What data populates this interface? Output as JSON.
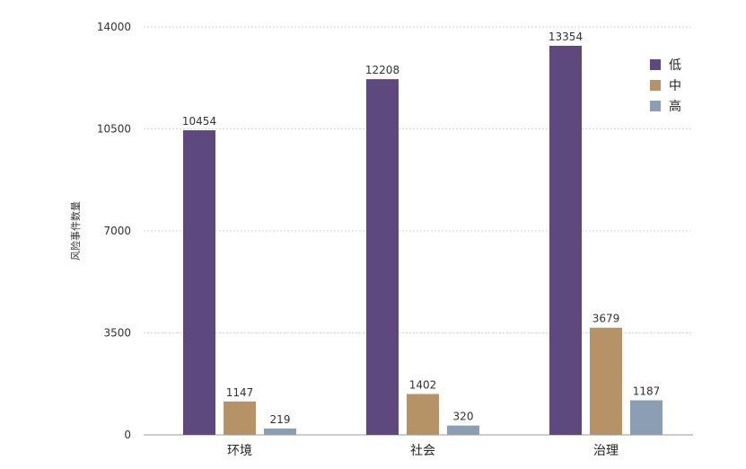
{
  "chart_data": {
    "type": "bar",
    "categories": [
      "环境",
      "社会",
      "治理"
    ],
    "series": [
      {
        "name": "低",
        "values": [
          10454,
          12208,
          13354
        ]
      },
      {
        "name": "中",
        "values": [
          1147,
          1402,
          3679
        ]
      },
      {
        "name": "高",
        "values": [
          219,
          320,
          1187
        ]
      }
    ],
    "colors": [
      "#5e497e",
      "#b59367",
      "#8c9eb3"
    ],
    "ylabel": "风险事件数量",
    "xlabel": "",
    "ylim": [
      0,
      14000
    ],
    "yticks": [
      0,
      3500,
      7000,
      10500,
      14000
    ],
    "grid": true,
    "legend_position": "top-right"
  }
}
